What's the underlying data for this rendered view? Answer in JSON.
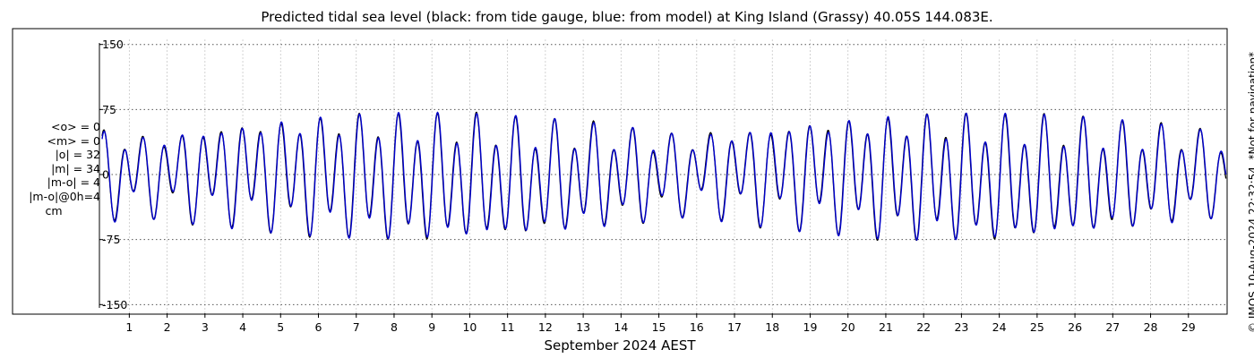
{
  "chart_data": {
    "type": "line",
    "title": "Predicted tidal sea level (black: from tide gauge, blue: from model) at King Island (Grassy) 40.05S 144.083E.",
    "xlabel": "September 2024 AEST",
    "ylabel": "",
    "ylim": [
      -160,
      160
    ],
    "xlim": [
      0.21,
      30
    ],
    "yticks": [
      "150",
      "75",
      "0",
      "-75",
      "-150"
    ],
    "ytick_values": [
      150,
      75,
      0,
      -75,
      -150
    ],
    "xticks": [
      "1",
      "2",
      "3",
      "4",
      "5",
      "6",
      "7",
      "8",
      "9",
      "10",
      "11",
      "12",
      "13",
      "14",
      "15",
      "16",
      "17",
      "18",
      "19",
      "20",
      "21",
      "22",
      "23",
      "24",
      "25",
      "26",
      "27",
      "28",
      "29"
    ],
    "grid": true,
    "x_start_day": 0.28,
    "tide_model": {
      "semidiurnal_period_days": 0.5175,
      "diurnal_period_days": 1.0,
      "spring_tide_days": [
        8.6,
        23.0
      ],
      "neap_tide_days": [
        15.0,
        29.5
      ]
    },
    "series": [
      {
        "name": "black: from tide gauge",
        "color": "#000000"
      },
      {
        "name": "blue: from model",
        "color": "#0000cc"
      }
    ]
  },
  "stats": {
    "mean_obs": "<o> = 0",
    "mean_model": "<m> = 0",
    "abs_obs": "|o| = 32",
    "abs_model": "|m| = 34",
    "abs_diff": "|m-o| = 4",
    "abs_diff_0h": "|m-o|@0h=4",
    "unit": "cm"
  },
  "copyright": "© IMOS 10-Aug-2024 22:32:54. *Not for navigation*",
  "colors": {
    "observed": "#000000",
    "model": "#0000cc",
    "grid": "#555555",
    "axes": "#000000"
  }
}
